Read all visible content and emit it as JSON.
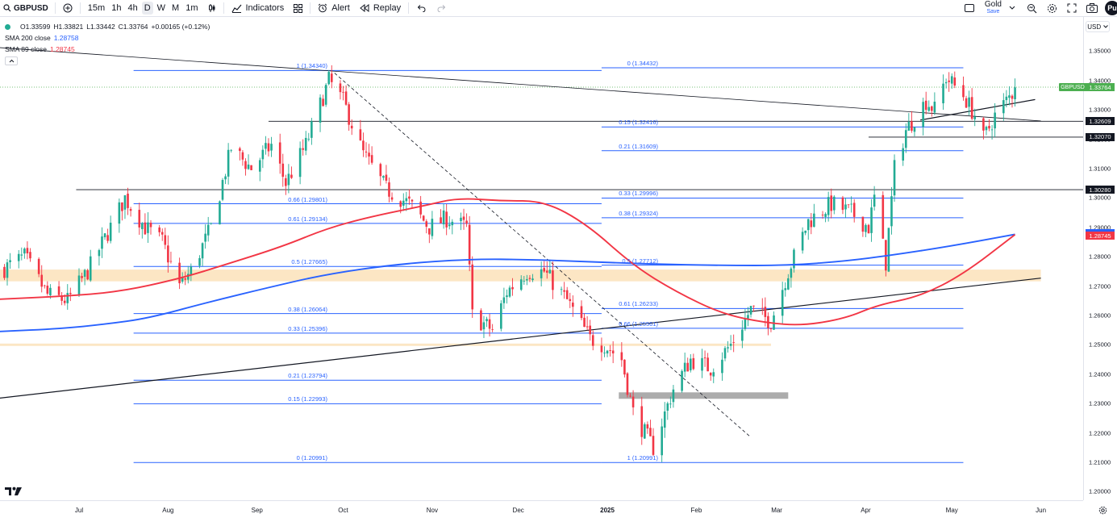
{
  "toolbar": {
    "symbol": "GBPUSD",
    "intervals": [
      "15m",
      "1h",
      "4h",
      "D",
      "W",
      "M",
      "1m"
    ],
    "active_interval": "D",
    "indicators_label": "Indicators",
    "alert_label": "Alert",
    "replay_label": "Replay",
    "layout_name": "Gold",
    "layout_status": "Save",
    "avatar_initials": "Pu"
  },
  "legend": {
    "o": "O1.33599",
    "h": "H1.33821",
    "l": "L1.33442",
    "c": "C1.33764",
    "change": "+0.00165 (+0.12%)",
    "sma200_label": "SMA 200 close",
    "sma200_value": "1.28758",
    "sma89_label": "SMA 89 close",
    "sma89_value": "1.28745"
  },
  "currency_button": "USD",
  "price_ticks": [
    "1.35000",
    "1.34000",
    "1.33000",
    "1.32000",
    "1.31000",
    "1.30000",
    "1.29000",
    "1.28000",
    "1.27000",
    "1.26000",
    "1.25000",
    "1.24000",
    "1.23000",
    "1.22000",
    "1.21000",
    "1.20000"
  ],
  "price_labels": {
    "symbol_tag": "GBPUSD",
    "last": "1.33764",
    "hline_1": "1.32609",
    "hline_2": "1.32070",
    "hline_3": "1.30280",
    "sma200": "1.28758",
    "sma89": "1.28745"
  },
  "time_ticks": [
    "Jul",
    "Aug",
    "Sep",
    "Oct",
    "Nov",
    "Dec",
    "2025",
    "Feb",
    "Mar",
    "Apr",
    "May",
    "Jun"
  ],
  "fib_left": [
    "1 (1.34340)",
    "0.66 (1.29801)",
    "0.61 (1.29134)",
    "0.5 (1.27665)",
    "0.38 (1.26064)",
    "0.33 (1.25396)",
    "0.21 (1.23794)",
    "0.15 (1.22993)",
    "0 (1.20991)"
  ],
  "fib_right": [
    "0 (1.34432)",
    "0.15 (1.32416)",
    "0.21 (1.31609)",
    "0.33 (1.29996)",
    "0.38 (1.29324)",
    "0.5 (1.27712)",
    "0.61 (1.26233)",
    "0.66 (1.25561)",
    "1 (1.20991)"
  ],
  "colors": {
    "up": "#22ab94",
    "down": "#f23645",
    "fib": "#2962ff",
    "sma200": "#2962ff",
    "sma89": "#f23645",
    "zone": "#fce6c4",
    "gray_box": "#9e9e9e",
    "label_dark": "#131722",
    "label_green": "#4caf50"
  },
  "chart_data": {
    "type": "candlestick",
    "symbol": "GBPUSD",
    "timeframe": "D",
    "ylim": [
      1.2,
      1.355
    ],
    "x_range": [
      "2024-06-05",
      "2025-06-02"
    ],
    "ohlc_path": [
      [
        "2024-06-05",
        1.276
      ],
      [
        "2024-06-12",
        1.28
      ],
      [
        "2024-06-20",
        1.267
      ],
      [
        "2024-06-27",
        1.265
      ],
      [
        "2024-07-04",
        1.275
      ],
      [
        "2024-07-12",
        1.29
      ],
      [
        "2024-07-17",
        1.3
      ],
      [
        "2024-07-24",
        1.29
      ],
      [
        "2024-07-30",
        1.285
      ],
      [
        "2024-08-05",
        1.27
      ],
      [
        "2024-08-09",
        1.275
      ],
      [
        "2024-08-16",
        1.29
      ],
      [
        "2024-08-23",
        1.317
      ],
      [
        "2024-08-30",
        1.31
      ],
      [
        "2024-09-06",
        1.318
      ],
      [
        "2024-09-11",
        1.305
      ],
      [
        "2024-09-18",
        1.318
      ],
      [
        "2024-09-26",
        1.34
      ],
      [
        "2024-10-01",
        1.333
      ],
      [
        "2024-10-08",
        1.315
      ],
      [
        "2024-10-16",
        1.303
      ],
      [
        "2024-10-24",
        1.298
      ],
      [
        "2024-10-31",
        1.29
      ],
      [
        "2024-11-06",
        1.293
      ],
      [
        "2024-11-13",
        1.29
      ],
      [
        "2024-11-15",
        1.26
      ],
      [
        "2024-11-22",
        1.255
      ],
      [
        "2024-11-27",
        1.268
      ],
      [
        "2024-12-04",
        1.275
      ],
      [
        "2024-12-10",
        1.275
      ],
      [
        "2024-12-18",
        1.265
      ],
      [
        "2024-12-26",
        1.252
      ],
      [
        "2024-12-31",
        1.25
      ],
      [
        "2025-01-06",
        1.245
      ],
      [
        "2025-01-10",
        1.227
      ],
      [
        "2025-01-14",
        1.22
      ],
      [
        "2025-01-17",
        1.215
      ],
      [
        "2025-01-24",
        1.235
      ],
      [
        "2025-01-30",
        1.245
      ],
      [
        "2025-02-06",
        1.242
      ],
      [
        "2025-02-13",
        1.25
      ],
      [
        "2025-02-20",
        1.262
      ],
      [
        "2025-02-27",
        1.258
      ],
      [
        "2025-03-05",
        1.275
      ],
      [
        "2025-03-12",
        1.292
      ],
      [
        "2025-03-20",
        1.298
      ],
      [
        "2025-03-27",
        1.295
      ],
      [
        "2025-04-02",
        1.29
      ],
      [
        "2025-04-04",
        1.3
      ],
      [
        "2025-04-08",
        1.278
      ],
      [
        "2025-04-11",
        1.31
      ],
      [
        "2025-04-15",
        1.323
      ],
      [
        "2025-04-22",
        1.333
      ],
      [
        "2025-04-25",
        1.33
      ],
      [
        "2025-04-29",
        1.341
      ],
      [
        "2025-05-05",
        1.335
      ],
      [
        "2025-05-09",
        1.328
      ],
      [
        "2025-05-12",
        1.32
      ],
      [
        "2025-05-16",
        1.328
      ],
      [
        "2025-05-20",
        1.333
      ],
      [
        "2025-05-23",
        1.337
      ]
    ],
    "last_close": 1.33764,
    "sma200": [
      [
        "2024-06-03",
        1.2545
      ],
      [
        "2024-06-25",
        1.2555
      ],
      [
        "2024-07-10",
        1.257
      ],
      [
        "2024-07-25",
        1.259
      ],
      [
        "2024-08-15",
        1.2645
      ],
      [
        "2024-09-05",
        1.2695
      ],
      [
        "2024-09-25",
        1.274
      ],
      [
        "2024-10-20",
        1.2775
      ],
      [
        "2024-11-15",
        1.2792
      ],
      [
        "2024-12-05",
        1.279
      ],
      [
        "2024-12-20",
        1.2785
      ],
      [
        "2025-01-15",
        1.2775
      ],
      [
        "2025-02-10",
        1.277
      ],
      [
        "2025-03-05",
        1.277
      ],
      [
        "2025-03-25",
        1.2785
      ],
      [
        "2025-04-10",
        1.2805
      ],
      [
        "2025-04-30",
        1.2835
      ],
      [
        "2025-05-23",
        1.2876
      ]
    ],
    "sma89": [
      [
        "2024-06-03",
        1.2655
      ],
      [
        "2024-06-25",
        1.2665
      ],
      [
        "2024-07-15",
        1.268
      ],
      [
        "2024-08-05",
        1.2725
      ],
      [
        "2024-08-20",
        1.277
      ],
      [
        "2024-09-10",
        1.2835
      ],
      [
        "2024-09-25",
        1.2895
      ],
      [
        "2024-10-10",
        1.2935
      ],
      [
        "2024-10-30",
        1.2975
      ],
      [
        "2024-11-10",
        1.3
      ],
      [
        "2024-11-25",
        1.299
      ],
      [
        "2024-12-10",
        1.299
      ],
      [
        "2024-12-25",
        1.291
      ],
      [
        "2025-01-10",
        1.277
      ],
      [
        "2025-01-25",
        1.268
      ],
      [
        "2025-02-10",
        1.2605
      ],
      [
        "2025-02-25",
        1.2575
      ],
      [
        "2025-03-10",
        1.2565
      ],
      [
        "2025-03-25",
        1.259
      ],
      [
        "2025-04-05",
        1.2635
      ],
      [
        "2025-04-20",
        1.2665
      ],
      [
        "2025-05-05",
        1.274
      ],
      [
        "2025-05-23",
        1.2875
      ]
    ],
    "horizontal_lines": [
      1.32609,
      1.3207,
      1.3028
    ],
    "trendlines": [
      {
        "from": [
          "2024-06-03",
          1.3512
        ],
        "to": [
          "2025-06-01",
          1.3262
        ],
        "style": "solid"
      },
      {
        "from": [
          "2024-06-03",
          1.2318
        ],
        "to": [
          "2025-06-01",
          1.2727
        ],
        "style": "solid"
      },
      {
        "from": [
          "2025-04-20",
          1.3265
        ],
        "to": [
          "2025-05-30",
          1.3335
        ],
        "style": "solid"
      },
      {
        "from": [
          "2024-09-28",
          1.3425
        ],
        "to": [
          "2025-02-20",
          1.2185
        ],
        "style": "dashed"
      }
    ],
    "zones": [
      {
        "from": "2024-06-03",
        "to": "2025-06-01",
        "low": 1.2716,
        "high": 1.2756
      },
      {
        "from": "2024-06-03",
        "to": "2025-02-27",
        "low": 1.2496,
        "high": 1.2504
      },
      {
        "from": "2025-01-05",
        "to": "2025-03-05",
        "low": 1.2316,
        "high": 1.2338,
        "style": "gray"
      }
    ],
    "fib_left": {
      "from": "2024-07-20",
      "to": "2024-12-30",
      "levels": [
        1.3434,
        1.29801,
        1.29134,
        1.27665,
        1.26064,
        1.25396,
        1.23794,
        1.22993,
        1.20991
      ]
    },
    "fib_right": {
      "from": "2024-12-30",
      "to": "2025-05-05",
      "levels": [
        1.34432,
        1.32416,
        1.31609,
        1.29996,
        1.29324,
        1.27712,
        1.26233,
        1.25561,
        1.20991
      ]
    }
  }
}
